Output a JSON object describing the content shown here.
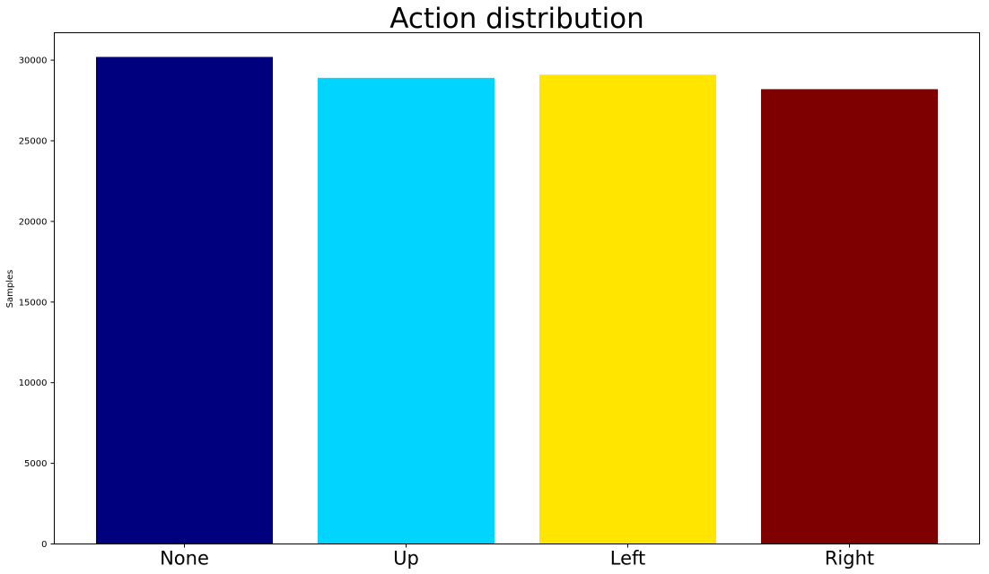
{
  "chart_data": {
    "type": "bar",
    "title": "Action distribution",
    "xlabel": "",
    "ylabel": "Samples",
    "categories": [
      "None",
      "Up",
      "Left",
      "Right"
    ],
    "values": [
      30200,
      28900,
      29100,
      28200
    ],
    "colors": [
      "#00007f",
      "#00d4ff",
      "#ffe500",
      "#7f0000"
    ],
    "ylim": [
      0,
      31700
    ],
    "yticks": [
      0,
      5000,
      10000,
      15000,
      20000,
      25000,
      30000
    ],
    "grid": false,
    "legend": "none"
  }
}
